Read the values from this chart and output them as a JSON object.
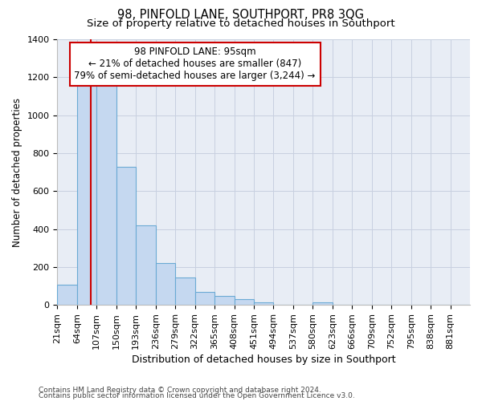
{
  "title": "98, PINFOLD LANE, SOUTHPORT, PR8 3QG",
  "subtitle": "Size of property relative to detached houses in Southport",
  "xlabel": "Distribution of detached houses by size in Southport",
  "ylabel": "Number of detached properties",
  "categories": [
    "21sqm",
    "64sqm",
    "107sqm",
    "150sqm",
    "193sqm",
    "236sqm",
    "279sqm",
    "322sqm",
    "365sqm",
    "408sqm",
    "451sqm",
    "494sqm",
    "537sqm",
    "580sqm",
    "623sqm",
    "666sqm",
    "709sqm",
    "752sqm",
    "795sqm",
    "838sqm",
    "881sqm"
  ],
  "values": [
    105,
    1160,
    1160,
    730,
    420,
    220,
    145,
    70,
    48,
    30,
    15,
    0,
    0,
    15,
    0,
    0,
    0,
    0,
    0,
    0,
    0
  ],
  "bar_color": "#c5d8f0",
  "bar_edge_color": "#6aaad4",
  "red_line_x": 2,
  "annotation_text": "98 PINFOLD LANE: 95sqm\n← 21% of detached houses are smaller (847)\n79% of semi-detached houses are larger (3,244) →",
  "annotation_box_color": "#ffffff",
  "annotation_box_edge": "#cc0000",
  "red_line_color": "#cc0000",
  "ylim": [
    0,
    1400
  ],
  "yticks": [
    0,
    200,
    400,
    600,
    800,
    1000,
    1200,
    1400
  ],
  "grid_color": "#c8d0e0",
  "bg_color": "#e8edf5",
  "footer1": "Contains HM Land Registry data © Crown copyright and database right 2024.",
  "footer2": "Contains public sector information licensed under the Open Government Licence v3.0.",
  "title_fontsize": 10.5,
  "subtitle_fontsize": 9.5,
  "xlabel_fontsize": 9,
  "ylabel_fontsize": 8.5,
  "tick_fontsize": 8,
  "footer_fontsize": 6.5,
  "annot_fontsize": 8.5
}
